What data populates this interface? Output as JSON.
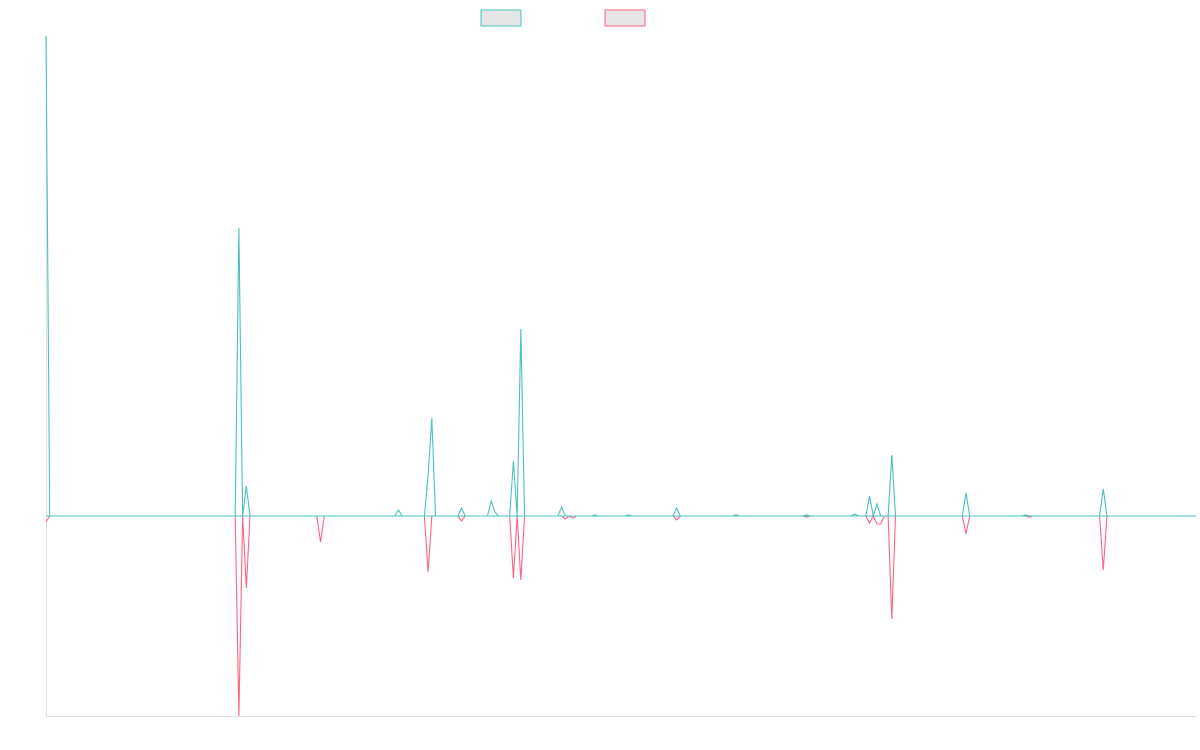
{
  "chart_data": {
    "type": "line",
    "title": "",
    "xlabel": "",
    "ylabel": "",
    "grid": false,
    "legend_placement": "top-center",
    "ylim": [
      -200,
      480
    ],
    "x_count": 310,
    "series": [
      {
        "color": "#4bc0c0",
        "fill": "#e6e6e6",
        "points": [
          [
            0,
            480
          ],
          [
            1,
            0
          ],
          [
            51,
            0
          ],
          [
            52,
            288
          ],
          [
            53,
            0
          ],
          [
            54,
            30
          ],
          [
            55,
            0
          ],
          [
            94,
            0
          ],
          [
            95,
            6
          ],
          [
            96,
            0
          ],
          [
            102,
            0
          ],
          [
            103,
            40
          ],
          [
            104,
            98
          ],
          [
            105,
            0
          ],
          [
            111,
            0
          ],
          [
            112,
            8
          ],
          [
            113,
            0
          ],
          [
            119,
            0
          ],
          [
            120,
            15
          ],
          [
            121,
            4
          ],
          [
            122,
            0
          ],
          [
            125,
            0
          ],
          [
            126,
            55
          ],
          [
            127,
            0
          ],
          [
            128,
            187
          ],
          [
            129,
            0
          ],
          [
            138,
            0
          ],
          [
            139,
            9
          ],
          [
            140,
            0
          ],
          [
            147,
            0
          ],
          [
            148,
            1
          ],
          [
            149,
            0
          ],
          [
            156,
            0
          ],
          [
            157,
            1
          ],
          [
            158,
            0
          ],
          [
            169,
            0
          ],
          [
            170,
            8
          ],
          [
            171,
            0
          ],
          [
            185,
            0
          ],
          [
            186,
            1
          ],
          [
            187,
            0
          ],
          [
            204,
            0
          ],
          [
            205,
            1
          ],
          [
            206,
            0
          ],
          [
            217,
            0
          ],
          [
            218,
            2
          ],
          [
            219,
            0
          ],
          [
            221,
            0
          ],
          [
            222,
            20
          ],
          [
            223,
            0
          ],
          [
            224,
            12
          ],
          [
            225,
            0
          ],
          [
            226,
            0
          ],
          [
            227,
            0
          ],
          [
            228,
            61
          ],
          [
            229,
            0
          ],
          [
            247,
            0
          ],
          [
            248,
            23
          ],
          [
            249,
            0
          ],
          [
            263,
            0
          ],
          [
            264,
            1
          ],
          [
            265,
            0
          ],
          [
            284,
            0
          ],
          [
            285,
            27
          ],
          [
            286,
            0
          ],
          [
            310,
            0
          ]
        ]
      },
      {
        "color": "#ff6384",
        "fill": "#e6e6e6",
        "points": [
          [
            0,
            -6
          ],
          [
            1,
            0
          ],
          [
            51,
            0
          ],
          [
            52,
            -200
          ],
          [
            53,
            0
          ],
          [
            54,
            -72
          ],
          [
            55,
            0
          ],
          [
            73,
            0
          ],
          [
            74,
            -26
          ],
          [
            75,
            0
          ],
          [
            102,
            0
          ],
          [
            103,
            -56
          ],
          [
            104,
            0
          ],
          [
            111,
            0
          ],
          [
            112,
            -5
          ],
          [
            113,
            0
          ],
          [
            125,
            0
          ],
          [
            126,
            -62
          ],
          [
            127,
            0
          ],
          [
            128,
            -64
          ],
          [
            129,
            0
          ],
          [
            139,
            0
          ],
          [
            140,
            -3
          ],
          [
            141,
            0
          ],
          [
            142,
            -2
          ],
          [
            143,
            0
          ],
          [
            169,
            0
          ],
          [
            170,
            -4
          ],
          [
            171,
            0
          ],
          [
            204,
            0
          ],
          [
            205,
            -1
          ],
          [
            206,
            0
          ],
          [
            221,
            0
          ],
          [
            222,
            -7
          ],
          [
            223,
            0
          ],
          [
            224,
            -8
          ],
          [
            225,
            -8
          ],
          [
            226,
            0
          ],
          [
            227,
            0
          ],
          [
            228,
            -103
          ],
          [
            229,
            0
          ],
          [
            247,
            0
          ],
          [
            248,
            -18
          ],
          [
            249,
            0
          ],
          [
            264,
            0
          ],
          [
            265,
            -1
          ],
          [
            266,
            0
          ],
          [
            284,
            0
          ],
          [
            285,
            -54
          ],
          [
            286,
            0
          ],
          [
            310,
            0
          ]
        ]
      }
    ]
  }
}
